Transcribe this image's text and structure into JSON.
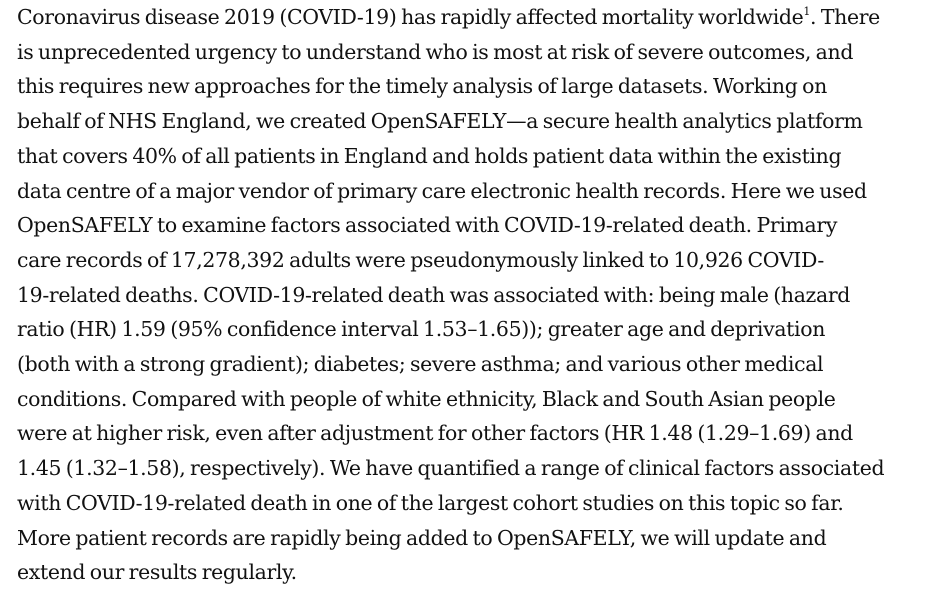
{
  "abstract": {
    "lines": [
      "Coronavirus disease 2019 (COVID-19) has rapidly affected mortality worldwide",
      "is unprecedented urgency to understand who is most at risk of severe outcomes, and",
      "this requires new approaches for the timely analysis of large datasets. Working on",
      "behalf of NHS England, we created OpenSAFELY—a secure health analytics platform",
      "that covers 40% of all patients in England and holds patient data within the existing",
      "data centre of a major vendor of primary care electronic health records. Here we used",
      "OpenSAFELY to examine factors associated with COVID-19-related death. Primary",
      "care records of 17,278,392 adults were pseudonymously linked to 10,926 COVID-",
      "19-related deaths. COVID-19-related death was associated with: being male (hazard",
      "ratio (HR) 1.59 (95% confidence interval 1.53–1.65)); greater age and deprivation",
      "(both with a strong gradient); diabetes; severe asthma; and various other medical",
      "conditions. Compared with people of white ethnicity, Black and South Asian people",
      "were at higher risk, even after adjustment for other factors (HR 1.48 (1.29–1.69) and",
      "1.45 (1.32–1.58), respectively). We have quantified a range of clinical factors associated",
      "with COVID-19-related death in one of the largest cohort studies on this topic so far.",
      "More patient records are rapidly being added to OpenSAFELY, we will update and",
      "extend our results regularly."
    ],
    "first_line_superscript": "1",
    "first_line_tail": ". There"
  }
}
